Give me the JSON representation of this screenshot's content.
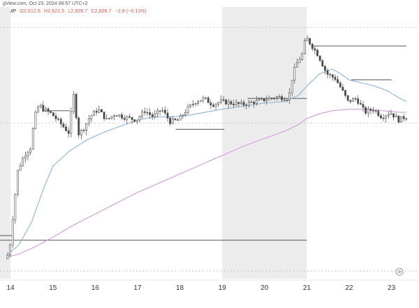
{
  "header": {
    "source_line": "gView.com, Oct 23, 2024 08:57 UTC+2",
    "symbol": "TAMP",
    "ohlc": {
      "open": "O2,612.6",
      "high": "H2,621.5",
      "low": "L2,609.7",
      "close": "C2,609.7",
      "change": "−2.8 (−0.11%)"
    }
  },
  "colors": {
    "up": "#26a69a",
    "down": "#ef5350",
    "candle": "#4a4a4a",
    "ma_fast": "#8ab4de",
    "ma_slow": "#d7a6de",
    "level_line": "#555555",
    "weekend_shade": "#ececec",
    "ohlc_text": "#d9534f"
  },
  "icons": {
    "forward": "go-to-realtime-icon"
  },
  "chart_data": {
    "type": "candlestick",
    "x_ticks": [
      "14",
      "15",
      "16",
      "17",
      "18",
      "19",
      "20",
      "21",
      "22",
      "23"
    ],
    "weekend_shading": [
      [
        "13",
        "14"
      ],
      [
        "19",
        "21"
      ]
    ],
    "series": [
      {
        "kind": "close_path",
        "x": [
          13.9,
          14.0,
          14.1,
          14.2,
          14.35,
          14.5,
          14.6,
          14.7,
          14.8,
          15.0,
          15.2,
          15.4,
          15.55,
          15.6,
          15.75,
          15.9,
          16.1,
          16.3,
          16.5,
          16.7,
          17.0,
          17.2,
          17.4,
          17.6,
          17.8,
          18.0,
          18.2,
          18.4,
          18.6,
          18.8,
          19.0,
          19.5,
          20.0,
          20.3,
          20.6,
          20.7,
          20.8,
          20.95,
          21.0,
          21.1,
          21.3,
          21.5,
          21.7,
          21.85,
          22.0,
          22.2,
          22.4,
          22.6,
          22.8,
          23.0,
          23.2,
          23.35
        ],
        "y": [
          2488,
          2492,
          2520,
          2545,
          2555,
          2560,
          2580,
          2588,
          2585,
          2582,
          2576,
          2570,
          2600,
          2568,
          2572,
          2580,
          2585,
          2578,
          2582,
          2580,
          2578,
          2584,
          2580,
          2585,
          2577,
          2578,
          2585,
          2590,
          2592,
          2588,
          2590,
          2588,
          2591,
          2593,
          2592,
          2608,
          2615,
          2622,
          2632,
          2628,
          2620,
          2608,
          2605,
          2598,
          2590,
          2592,
          2583,
          2585,
          2580,
          2583,
          2578,
          2580
        ]
      },
      {
        "kind": "moving_average_fast",
        "x": [
          13.9,
          14.2,
          14.5,
          14.8,
          15.0,
          15.4,
          15.8,
          16.2,
          16.6,
          17.0,
          17.4,
          17.8,
          18.2,
          18.6,
          19.0,
          19.5,
          20.0,
          20.5,
          20.8,
          21.0,
          21.3,
          21.6,
          21.8,
          22.0,
          22.3,
          22.6,
          22.9,
          23.2,
          23.35
        ],
        "y": [
          2490,
          2497,
          2512,
          2535,
          2548,
          2558,
          2565,
          2570,
          2574,
          2578,
          2580,
          2580,
          2581,
          2583,
          2585,
          2587,
          2589,
          2590,
          2594,
          2600,
          2608,
          2611,
          2608,
          2604,
          2602,
          2600,
          2597,
          2592,
          2590
        ]
      },
      {
        "kind": "moving_average_slow",
        "x": [
          13.9,
          14.2,
          14.6,
          15.0,
          15.5,
          16.0,
          16.5,
          17.0,
          17.5,
          18.0,
          18.5,
          19.0,
          19.5,
          20.0,
          20.5,
          20.8,
          21.0,
          21.3,
          21.6,
          22.0,
          22.4,
          22.8,
          23.2,
          23.35
        ],
        "y": [
          2489,
          2491,
          2496,
          2502,
          2510,
          2517,
          2524,
          2531,
          2537,
          2543,
          2549,
          2555,
          2561,
          2566,
          2571,
          2575,
          2579,
          2582,
          2584,
          2585,
          2585,
          2584,
          2583,
          2583
        ]
      }
    ],
    "horizontal_levels": [
      {
        "y": 2626,
        "x_from": 21.1,
        "x_to": 23.35
      },
      {
        "y": 2604,
        "x_from": 22.05,
        "x_to": 23.0
      },
      {
        "y": 2592,
        "x_from": 19.6,
        "x_to": 21.0
      },
      {
        "y": 2584,
        "x_from": 14.75,
        "x_to": 15.4
      },
      {
        "y": 2572,
        "x_from": 17.9,
        "x_to": 19.05
      },
      {
        "y": 2500,
        "x_from": 13.75,
        "x_to": 21.0
      },
      {
        "y": 2503,
        "x_from": 13.75,
        "x_to": 14.05
      }
    ],
    "dotted_levels": [
      2638,
      2576,
      2480
    ],
    "xlim": [
      13.75,
      23.65
    ],
    "ylim": [
      2475,
      2645
    ],
    "grid": false,
    "legend": "none"
  }
}
